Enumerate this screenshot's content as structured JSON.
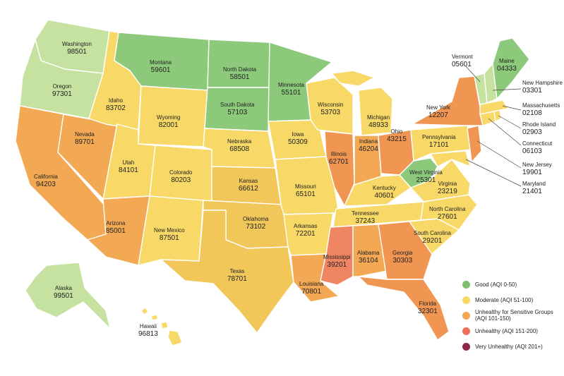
{
  "colors": {
    "good": "#8cc97a",
    "good_light": "#c6e2a0",
    "moderate": "#f8d866",
    "moderate_dark": "#f2c75a",
    "usg": "#f3a954",
    "usg_dark": "#f09652",
    "unhealthy": "#ef8562",
    "very_unhealthy": "#8e2846"
  },
  "legend": [
    {
      "label": "Good (AQI 0-50)",
      "color": "#7cbf6b"
    },
    {
      "label": "Moderate (AQI 51-100)",
      "color": "#f8d866"
    },
    {
      "label": "Unhealthy for Sensitive Groups (AQI 101-150)",
      "color": "#f3a954"
    },
    {
      "label": "Unhealthy (AQI 151-200)",
      "color": "#ef6f5e"
    },
    {
      "label": "Very Unhealthy (AQI 201+)",
      "color": "#8e2846"
    }
  ],
  "states": {
    "WA": {
      "name": "Washington",
      "zip": "98501"
    },
    "OR": {
      "name": "Oregon",
      "zip": "97301"
    },
    "CA": {
      "name": "California",
      "zip": "94203"
    },
    "NV": {
      "name": "Nevada",
      "zip": "89701"
    },
    "ID": {
      "name": "Idaho",
      "zip": "83702"
    },
    "MT": {
      "name": "Montana",
      "zip": "59601"
    },
    "WY": {
      "name": "Wyoming",
      "zip": "82001"
    },
    "UT": {
      "name": "Utah",
      "zip": "84101"
    },
    "CO": {
      "name": "Colorado",
      "zip": "80203"
    },
    "AZ": {
      "name": "Arizona",
      "zip": "85001"
    },
    "NM": {
      "name": "New Mexico",
      "zip": "87501"
    },
    "ND": {
      "name": "North Dakota",
      "zip": "58501"
    },
    "SD": {
      "name": "South Dakota",
      "zip": "57103"
    },
    "NE": {
      "name": "Nebraska",
      "zip": "68508"
    },
    "KS": {
      "name": "Kansas",
      "zip": "66612"
    },
    "OK": {
      "name": "Oklahoma",
      "zip": "73102"
    },
    "TX": {
      "name": "Texas",
      "zip": "78701"
    },
    "MN": {
      "name": "Minnesota",
      "zip": "55101"
    },
    "IA": {
      "name": "Iowa",
      "zip": "50309"
    },
    "MO": {
      "name": "Missouri",
      "zip": "65101"
    },
    "AR": {
      "name": "Arkansas",
      "zip": "72201"
    },
    "LA": {
      "name": "Louisiana",
      "zip": "70801"
    },
    "WI": {
      "name": "Wisconsin",
      "zip": "53703"
    },
    "IL": {
      "name": "Illinois",
      "zip": "62701"
    },
    "MI": {
      "name": "Michigan",
      "zip": "48933"
    },
    "IN": {
      "name": "Indiana",
      "zip": "46204"
    },
    "OH": {
      "name": "Ohio",
      "zip": "43215"
    },
    "KY": {
      "name": "Kentucky",
      "zip": "40601"
    },
    "TN": {
      "name": "Tennessee",
      "zip": "37243"
    },
    "MS": {
      "name": "Mississippi",
      "zip": "39201"
    },
    "AL": {
      "name": "Alabama",
      "zip": "36104"
    },
    "GA": {
      "name": "Georgia",
      "zip": "30303"
    },
    "FL": {
      "name": "Florida",
      "zip": "32301"
    },
    "SC": {
      "name": "South Carolina",
      "zip": "29201"
    },
    "NC": {
      "name": "North Carolina",
      "zip": "27601"
    },
    "VA": {
      "name": "Virginia",
      "zip": "23219"
    },
    "WV": {
      "name": "West Virginia",
      "zip": "25301"
    },
    "PA": {
      "name": "Pennsylvania",
      "zip": "17101"
    },
    "NY": {
      "name": "New York",
      "zip": "12207"
    },
    "VT": {
      "name": "Vermont",
      "zip": "05601"
    },
    "ME": {
      "name": "Maine",
      "zip": "04333"
    },
    "NH": {
      "name": "New Hampshire",
      "zip": "03301"
    },
    "MA": {
      "name": "Massachusetts",
      "zip": "02108"
    },
    "RI": {
      "name": "Rhode Island",
      "zip": "02903"
    },
    "CT": {
      "name": "Connecticut",
      "zip": "06103"
    },
    "NJ": {
      "name": "New Jersey",
      "zip": "19901"
    },
    "MD": {
      "name": "Maryland",
      "zip": "21401"
    },
    "AK": {
      "name": "Alaska",
      "zip": "99501"
    },
    "HI": {
      "name": "Hawaii",
      "zip": "96813"
    }
  }
}
